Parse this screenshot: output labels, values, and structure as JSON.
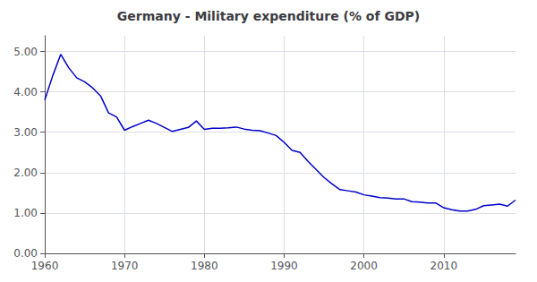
{
  "chart_data": {
    "type": "line",
    "title": "Germany - Military expenditure (% of GDP)",
    "x": [
      1960,
      1961,
      1962,
      1963,
      1964,
      1965,
      1966,
      1967,
      1968,
      1969,
      1970,
      1971,
      1972,
      1973,
      1974,
      1975,
      1976,
      1977,
      1978,
      1979,
      1980,
      1981,
      1982,
      1983,
      1984,
      1985,
      1986,
      1987,
      1988,
      1989,
      1990,
      1991,
      1992,
      1993,
      1994,
      1995,
      1996,
      1997,
      1998,
      1999,
      2000,
      2001,
      2002,
      2003,
      2004,
      2005,
      2006,
      2007,
      2008,
      2009,
      2010,
      2011,
      2012,
      2013,
      2014,
      2015,
      2016,
      2017,
      2018,
      2019
    ],
    "values": [
      3.8,
      4.4,
      4.93,
      4.6,
      4.35,
      4.25,
      4.1,
      3.9,
      3.48,
      3.38,
      3.05,
      3.14,
      3.22,
      3.3,
      3.22,
      3.12,
      3.02,
      3.07,
      3.12,
      3.28,
      3.07,
      3.1,
      3.1,
      3.11,
      3.13,
      3.08,
      3.05,
      3.04,
      2.98,
      2.92,
      2.75,
      2.55,
      2.5,
      2.28,
      2.08,
      1.88,
      1.72,
      1.58,
      1.55,
      1.52,
      1.45,
      1.42,
      1.38,
      1.37,
      1.35,
      1.35,
      1.28,
      1.27,
      1.25,
      1.25,
      1.13,
      1.08,
      1.05,
      1.05,
      1.09,
      1.18,
      1.2,
      1.22,
      1.17,
      1.32
    ],
    "color": "#0000CC",
    "xlim": [
      1960,
      2019
    ],
    "xticks": [
      1960,
      1970,
      1980,
      1990,
      2000,
      2010
    ],
    "ylim": [
      0.0,
      5.39
    ],
    "yticks": [
      {
        "value": 0,
        "label": "0.00"
      },
      {
        "value": 1,
        "label": "1.00"
      },
      {
        "value": 2,
        "label": "2.00"
      },
      {
        "value": 3,
        "label": "3.00"
      },
      {
        "value": 4,
        "label": "4.00"
      },
      {
        "value": 5,
        "label": "5.00"
      }
    ],
    "grid": true
  }
}
